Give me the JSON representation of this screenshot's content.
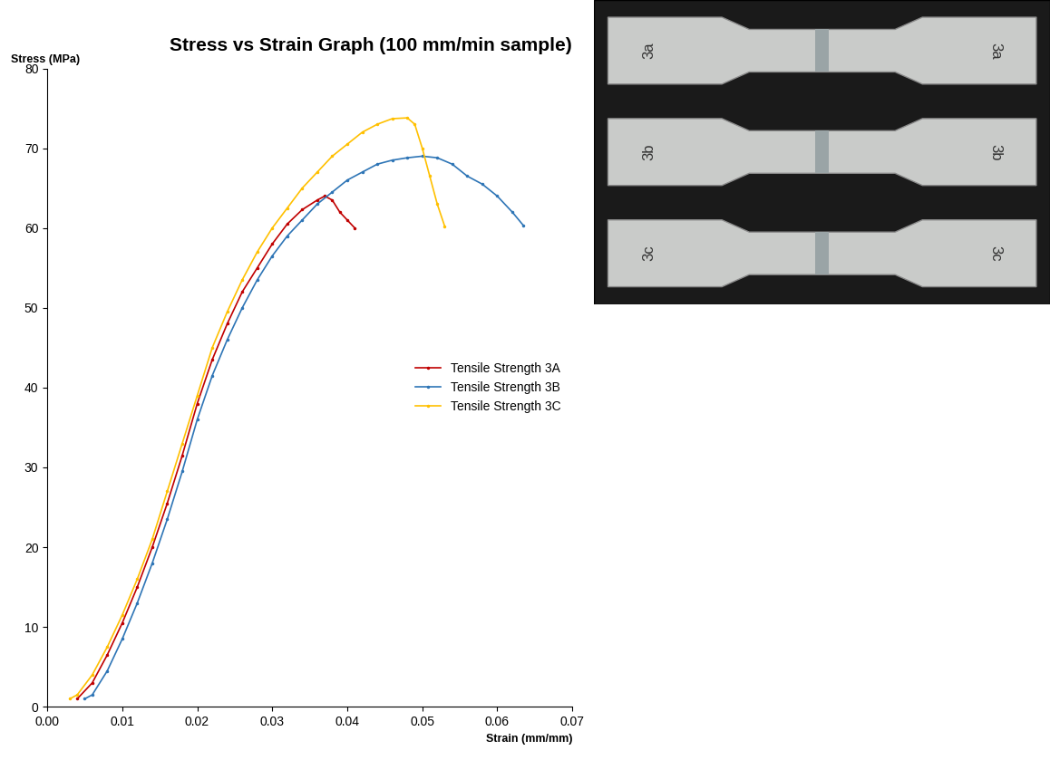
{
  "chart_data": {
    "type": "line",
    "title": "Stress vs Strain Graph (100 mm/min sample)",
    "x_label": "Strain (mm/mm)",
    "y_label": "Stress (MPa)",
    "xlim": [
      0,
      0.07
    ],
    "xticks": [
      {
        "value": 0,
        "label": "0.00"
      },
      {
        "value": 0.01,
        "label": "0.01"
      },
      {
        "value": 0.02,
        "label": "0.02"
      },
      {
        "value": 0.03,
        "label": "0.03"
      },
      {
        "value": 0.04,
        "label": "0.04"
      },
      {
        "value": 0.05,
        "label": "0.05"
      },
      {
        "value": 0.06,
        "label": "0.06"
      },
      {
        "value": 0.07,
        "label": "0.07"
      }
    ],
    "ylim": [
      0,
      80
    ],
    "yticks": [
      0,
      10,
      20,
      30,
      40,
      50,
      60,
      70,
      80
    ],
    "grid": false,
    "legend": "center right",
    "series": [
      {
        "name": "Tensile Strength 3A",
        "color": "#c00000",
        "marker": "dot",
        "line_style": "solid",
        "x": [
          0.004,
          0.006,
          0.008,
          0.01,
          0.012,
          0.014,
          0.016,
          0.018,
          0.02,
          0.022,
          0.024,
          0.026,
          0.028,
          0.03,
          0.032,
          0.034,
          0.036,
          0.037,
          0.038,
          0.039,
          0.04,
          0.041
        ],
        "values": [
          1,
          3,
          6.5,
          10.5,
          15,
          20,
          25.5,
          31.5,
          38,
          43.5,
          48,
          52,
          55,
          58,
          60.5,
          62.3,
          63.5,
          64,
          63.5,
          62,
          61,
          60
        ]
      },
      {
        "name": "Tensile Strength 3B",
        "color": "#2e75b6",
        "marker": "dot",
        "line_style": "solid",
        "x": [
          0.005,
          0.006,
          0.008,
          0.01,
          0.012,
          0.014,
          0.016,
          0.018,
          0.02,
          0.022,
          0.024,
          0.026,
          0.028,
          0.03,
          0.032,
          0.034,
          0.036,
          0.038,
          0.04,
          0.042,
          0.044,
          0.046,
          0.048,
          0.05,
          0.052,
          0.054,
          0.056,
          0.058,
          0.06,
          0.062,
          0.0635
        ],
        "values": [
          1,
          1.5,
          4.5,
          8.5,
          13,
          18,
          23.5,
          29.5,
          36,
          41.5,
          46,
          50,
          53.5,
          56.5,
          59,
          61,
          63,
          64.5,
          66,
          67,
          68,
          68.5,
          68.8,
          69,
          68.8,
          68,
          66.5,
          65.5,
          64,
          62,
          60.3
        ]
      },
      {
        "name": "Tensile Strength 3C",
        "color": "#ffc000",
        "marker": "dot",
        "line_style": "solid",
        "x": [
          0.003,
          0.004,
          0.006,
          0.008,
          0.01,
          0.012,
          0.014,
          0.016,
          0.018,
          0.02,
          0.022,
          0.024,
          0.026,
          0.028,
          0.03,
          0.032,
          0.034,
          0.036,
          0.038,
          0.04,
          0.042,
          0.044,
          0.046,
          0.048,
          0.049,
          0.05,
          0.051,
          0.052,
          0.053
        ],
        "values": [
          1,
          1.5,
          4,
          7.5,
          11.5,
          16,
          21,
          27,
          33,
          39,
          45,
          49.5,
          53.5,
          57,
          60,
          62.5,
          65,
          67,
          69,
          70.5,
          72,
          73,
          73.7,
          73.8,
          73,
          70,
          66.5,
          63,
          60.2
        ]
      }
    ]
  },
  "photo": {
    "specimens": [
      {
        "labels": [
          "3a",
          "3a"
        ]
      },
      {
        "labels": [
          "3b",
          "3b"
        ]
      },
      {
        "labels": [
          "3c",
          "3c"
        ]
      }
    ]
  }
}
